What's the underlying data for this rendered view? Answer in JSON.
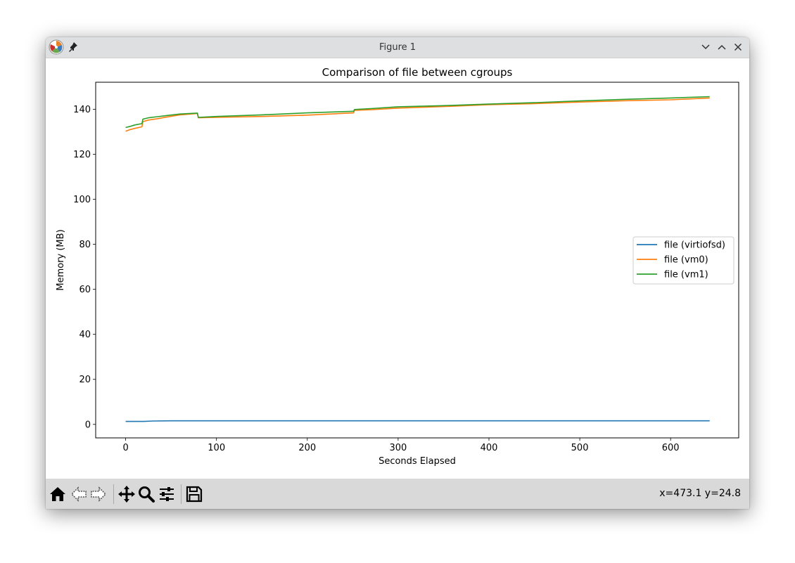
{
  "window": {
    "title": "Figure 1",
    "icons": [
      "matplotlib-logo-icon",
      "pin-icon",
      "minimize-icon",
      "maximize-icon",
      "close-icon"
    ]
  },
  "toolbar": {
    "buttons": [
      {
        "name": "home-button",
        "icon": "home-icon"
      },
      {
        "name": "back-button",
        "icon": "back-arrow-icon"
      },
      {
        "name": "forward-button",
        "icon": "forward-arrow-icon"
      },
      {
        "name": "pan-button",
        "icon": "move-icon"
      },
      {
        "name": "zoom-button",
        "icon": "magnifier-icon"
      },
      {
        "name": "configure-subplots-button",
        "icon": "sliders-icon"
      },
      {
        "name": "save-button",
        "icon": "floppy-disk-icon"
      }
    ],
    "coords": "x=473.1 y=24.8"
  },
  "chart_data": {
    "type": "line",
    "title": "Comparison of file between cgroups",
    "xlabel": "Seconds Elapsed",
    "ylabel": "Memory (MB)",
    "xlim": [
      -33,
      675
    ],
    "ylim": [
      -6,
      152
    ],
    "xticks": [
      0,
      100,
      200,
      300,
      400,
      500,
      600
    ],
    "yticks": [
      0,
      20,
      40,
      60,
      80,
      100,
      120,
      140
    ],
    "grid": false,
    "legend": "center-right",
    "series": [
      {
        "name": "file (virtiofsd)",
        "color": "#1f77b4",
        "x": [
          0,
          20,
          30,
          50,
          100,
          200,
          300,
          400,
          500,
          600,
          643
        ],
        "y": [
          1.3,
          1.3,
          1.5,
          1.6,
          1.6,
          1.6,
          1.6,
          1.6,
          1.6,
          1.6,
          1.6
        ]
      },
      {
        "name": "file (vm0)",
        "color": "#ff7f0e",
        "x": [
          0,
          5,
          10,
          18,
          19,
          25,
          35,
          45,
          60,
          79,
          80,
          100,
          150,
          200,
          251,
          252,
          270,
          300,
          350,
          400,
          450,
          500,
          550,
          600,
          643
        ],
        "y": [
          130.2,
          131,
          131.5,
          132.2,
          134.5,
          135.2,
          135.8,
          136.5,
          137.5,
          138.1,
          136.2,
          136.4,
          136.8,
          137.4,
          138.4,
          139.5,
          139.8,
          140.5,
          141.2,
          142,
          142.5,
          143.2,
          143.8,
          144.2,
          145
        ]
      },
      {
        "name": "file (vm1)",
        "color": "#2ca02c",
        "x": [
          0,
          5,
          10,
          18,
          19,
          25,
          35,
          45,
          60,
          79,
          80,
          100,
          150,
          200,
          251,
          252,
          270,
          300,
          350,
          400,
          450,
          500,
          550,
          600,
          643
        ],
        "y": [
          131.9,
          132.4,
          133,
          133.6,
          135.6,
          136.2,
          136.7,
          137.2,
          137.9,
          138.3,
          136.4,
          136.8,
          137.5,
          138.4,
          139.1,
          139.9,
          140.3,
          141.1,
          141.6,
          142.3,
          142.9,
          143.7,
          144.4,
          145,
          145.6
        ]
      }
    ]
  }
}
